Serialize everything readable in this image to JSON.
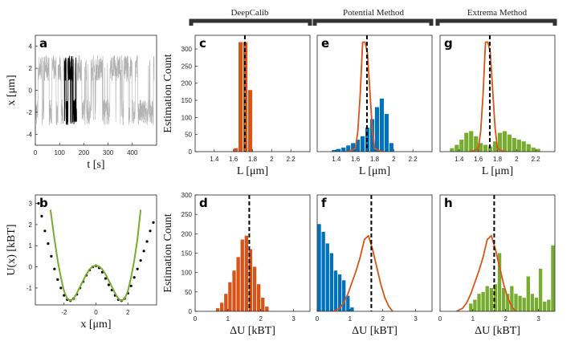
{
  "figure": {
    "groups": [
      {
        "key": "deepcalib",
        "title": "DeepCalib"
      },
      {
        "key": "potential",
        "title": "Potential Method"
      },
      {
        "key": "extrema",
        "title": "Extrema Method"
      }
    ],
    "colors": {
      "orange": "#D95319",
      "blue": "#0072BD",
      "green": "#77AC30",
      "gray": "#B3B3B3",
      "black": "#000000"
    }
  },
  "chart_data": [
    {
      "id": "a",
      "letter": "a",
      "type": "line",
      "title": "",
      "xlabel": "t [s]",
      "ylabel": "x [μm]",
      "xlim": [
        0,
        500
      ],
      "ylim": [
        -5,
        5
      ],
      "xticks": [
        0,
        100,
        200,
        300,
        400
      ],
      "yticks": [
        -4,
        -2,
        0,
        2,
        4
      ],
      "series": [
        {
          "name": "full trajectory",
          "color": "gray",
          "t_range": [
            0,
            490
          ],
          "levels": [
            2.0,
            -2.0
          ]
        },
        {
          "name": "highlighted segment",
          "color": "black",
          "t_range": [
            120,
            170
          ],
          "levels": [
            2.0,
            -2.0
          ]
        }
      ]
    },
    {
      "id": "b",
      "letter": "b",
      "type": "line",
      "title": "",
      "xlabel": "x [μm]",
      "ylabel": "U(x) [kBT]",
      "xlim": [
        -3.8,
        3.8
      ],
      "ylim": [
        -1.8,
        3.4
      ],
      "xticks": [
        -2,
        0,
        2
      ],
      "yticks": [
        -1,
        0,
        1,
        2,
        3
      ],
      "series": [
        {
          "name": "estimated potential (dots)",
          "color": "black",
          "style": "dotted",
          "x": [
            -3.6,
            -3.4,
            -3.2,
            -3.0,
            -2.8,
            -2.6,
            -2.4,
            -2.2,
            -2.0,
            -1.8,
            -1.6,
            -1.4,
            -1.2,
            -1.0,
            -0.8,
            -0.6,
            -0.4,
            -0.2,
            0.0,
            0.2,
            0.4,
            0.6,
            0.8,
            1.0,
            1.2,
            1.4,
            1.6,
            1.8,
            2.0,
            2.2,
            2.4,
            2.6,
            2.8,
            3.0,
            3.2,
            3.4,
            3.6
          ],
          "y": [
            3.0,
            2.4,
            1.7,
            1.1,
            0.5,
            -0.1,
            -0.6,
            -1.0,
            -1.35,
            -1.55,
            -1.6,
            -1.5,
            -1.3,
            -1.0,
            -0.7,
            -0.4,
            -0.15,
            0.0,
            0.05,
            -0.05,
            -0.25,
            -0.55,
            -0.85,
            -1.1,
            -1.35,
            -1.55,
            -1.6,
            -1.5,
            -1.25,
            -0.9,
            -0.5,
            -0.1,
            0.3,
            0.75,
            1.2,
            1.7,
            2.1
          ]
        },
        {
          "name": "reference potential",
          "color": "green",
          "style": "solid",
          "x": [
            -2.85,
            -2.6,
            -2.4,
            -2.2,
            -2.0,
            -1.8,
            -1.6,
            -1.4,
            -1.2,
            -1.0,
            -0.8,
            -0.6,
            -0.4,
            -0.2,
            0.0,
            0.2,
            0.4,
            0.6,
            0.8,
            1.0,
            1.2,
            1.4,
            1.6,
            1.8,
            2.0,
            2.2,
            2.4,
            2.6,
            2.8
          ],
          "y": [
            2.7,
            1.3,
            0.3,
            -0.5,
            -1.15,
            -1.5,
            -1.6,
            -1.5,
            -1.25,
            -0.95,
            -0.65,
            -0.35,
            -0.12,
            0.02,
            0.07,
            0.02,
            -0.12,
            -0.35,
            -0.65,
            -0.95,
            -1.25,
            -1.5,
            -1.6,
            -1.5,
            -1.15,
            -0.5,
            0.3,
            1.3,
            2.7
          ]
        }
      ]
    },
    {
      "id": "c",
      "letter": "c",
      "type": "bar",
      "title": "DeepCalib",
      "xlabel": "L [μm]",
      "ylabel": "Estimation Count",
      "xlim": [
        1.2,
        2.4
      ],
      "ylim": [
        0,
        340
      ],
      "xticks": [
        1.4,
        1.6,
        1.8,
        2.0,
        2.2
      ],
      "yticks": [
        0,
        50,
        100,
        150,
        200,
        250,
        300
      ],
      "bin_width": 0.05,
      "color": "orange",
      "bin_centers": [
        1.625,
        1.675,
        1.725,
        1.775
      ],
      "counts": [
        10,
        320,
        320,
        180
      ],
      "true_value": 1.72
    },
    {
      "id": "d",
      "letter": "d",
      "type": "bar",
      "title": "",
      "xlabel": "ΔU [kBT]",
      "ylabel": "Estimation Count",
      "xlim": [
        0,
        3.5
      ],
      "ylim": [
        0,
        300
      ],
      "xticks": [
        0,
        1,
        2,
        3
      ],
      "yticks": [
        0,
        50,
        100,
        150,
        200,
        250,
        300
      ],
      "bin_width": 0.125,
      "color": "orange",
      "bin_centers": [
        0.6875,
        0.8125,
        0.9375,
        1.0625,
        1.1875,
        1.3125,
        1.4375,
        1.5625,
        1.6875,
        1.8125,
        1.9375,
        2.0625,
        2.1875
      ],
      "counts": [
        8,
        22,
        45,
        75,
        105,
        140,
        185,
        195,
        160,
        115,
        70,
        35,
        12
      ],
      "true_value": 1.65
    },
    {
      "id": "e",
      "letter": "e",
      "type": "bar",
      "title": "Potential Method",
      "xlabel": "L [μm]",
      "ylabel": "",
      "xlim": [
        1.2,
        2.4
      ],
      "ylim": [
        0,
        340
      ],
      "xticks": [
        1.4,
        1.6,
        1.8,
        2.0,
        2.2
      ],
      "yticks": [],
      "bin_width": 0.05,
      "color": "blue",
      "bin_centers": [
        1.375,
        1.425,
        1.475,
        1.525,
        1.575,
        1.625,
        1.675,
        1.725,
        1.775,
        1.825,
        1.875,
        1.925,
        1.975
      ],
      "counts": [
        5,
        8,
        12,
        18,
        25,
        35,
        45,
        70,
        95,
        130,
        155,
        110,
        25
      ],
      "true_value": 1.72,
      "overlay": {
        "name": "DeepCalib distribution",
        "color": "orange",
        "x": [
          1.5,
          1.55,
          1.6,
          1.625,
          1.65,
          1.675,
          1.7,
          1.725,
          1.75,
          1.775,
          1.8,
          1.85,
          1.9
        ],
        "y": [
          0,
          2,
          10,
          60,
          170,
          320,
          320,
          290,
          180,
          70,
          10,
          2,
          0
        ]
      }
    },
    {
      "id": "f",
      "letter": "f",
      "type": "bar",
      "title": "",
      "xlabel": "ΔU [kBT]",
      "ylabel": "",
      "xlim": [
        0,
        3.5
      ],
      "ylim": [
        0,
        300
      ],
      "xticks": [
        0,
        1,
        2,
        3
      ],
      "yticks": [],
      "bin_width": 0.125,
      "color": "blue",
      "bin_centers": [
        0.0625,
        0.1875,
        0.3125,
        0.4375,
        0.5625,
        0.6875,
        0.8125,
        0.9375,
        1.0625
      ],
      "counts": [
        225,
        205,
        175,
        150,
        105,
        95,
        80,
        40,
        10
      ],
      "true_value": 1.65,
      "overlay": {
        "name": "DeepCalib distribution",
        "color": "orange",
        "x": [
          0.5,
          0.6875,
          0.8125,
          0.9375,
          1.0625,
          1.1875,
          1.3125,
          1.4375,
          1.5625,
          1.6875,
          1.8125,
          1.9375,
          2.0625,
          2.1875,
          2.3
        ],
        "y": [
          0,
          8,
          22,
          45,
          75,
          105,
          140,
          185,
          195,
          160,
          115,
          70,
          35,
          12,
          0
        ]
      }
    },
    {
      "id": "g",
      "letter": "g",
      "type": "bar",
      "title": "Extrema Method",
      "xlabel": "L [μm]",
      "ylabel": "",
      "xlim": [
        1.2,
        2.4
      ],
      "ylim": [
        0,
        340
      ],
      "xticks": [
        1.4,
        1.6,
        1.8,
        2.0,
        2.2
      ],
      "yticks": [],
      "bin_width": 0.05,
      "color": "green",
      "bin_centers": [
        1.325,
        1.375,
        1.425,
        1.475,
        1.525,
        1.575,
        1.625,
        1.675,
        1.725,
        1.775,
        1.825,
        1.875,
        1.925,
        1.975,
        2.025,
        2.075,
        2.125,
        2.175,
        2.225
      ],
      "counts": [
        10,
        20,
        35,
        55,
        60,
        45,
        25,
        20,
        15,
        30,
        55,
        60,
        50,
        40,
        35,
        30,
        22,
        12,
        8
      ],
      "true_value": 1.72,
      "overlay": {
        "name": "DeepCalib distribution",
        "color": "orange",
        "x": [
          1.5,
          1.55,
          1.6,
          1.625,
          1.65,
          1.675,
          1.7,
          1.725,
          1.75,
          1.775,
          1.8,
          1.85,
          1.9
        ],
        "y": [
          0,
          2,
          10,
          60,
          170,
          320,
          320,
          290,
          180,
          70,
          10,
          2,
          0
        ]
      }
    },
    {
      "id": "h",
      "letter": "h",
      "type": "bar",
      "title": "",
      "xlabel": "ΔU [kBT]",
      "ylabel": "",
      "xlim": [
        0,
        3.5
      ],
      "ylim": [
        0,
        300
      ],
      "xticks": [
        0,
        1,
        2,
        3
      ],
      "yticks": [],
      "bin_width": 0.125,
      "color": "green",
      "bin_centers": [
        0.9375,
        1.0625,
        1.1875,
        1.3125,
        1.4375,
        1.5625,
        1.6875,
        1.8125,
        1.9375,
        2.0625,
        2.1875,
        2.3125,
        2.4375,
        2.5625,
        2.6875,
        2.8125,
        2.9375,
        3.0625,
        3.1875,
        3.3125,
        3.4375
      ],
      "counts": [
        20,
        30,
        45,
        50,
        65,
        60,
        70,
        150,
        60,
        45,
        65,
        45,
        40,
        35,
        90,
        45,
        35,
        110,
        25,
        30,
        170
      ],
      "true_value": 1.65,
      "overlay": {
        "name": "DeepCalib distribution",
        "color": "orange",
        "x": [
          0.5,
          0.6875,
          0.8125,
          0.9375,
          1.0625,
          1.1875,
          1.3125,
          1.4375,
          1.5625,
          1.6875,
          1.8125,
          1.9375,
          2.0625,
          2.1875,
          2.3
        ],
        "y": [
          0,
          8,
          22,
          45,
          75,
          105,
          140,
          185,
          195,
          160,
          115,
          70,
          35,
          12,
          0
        ]
      }
    }
  ]
}
